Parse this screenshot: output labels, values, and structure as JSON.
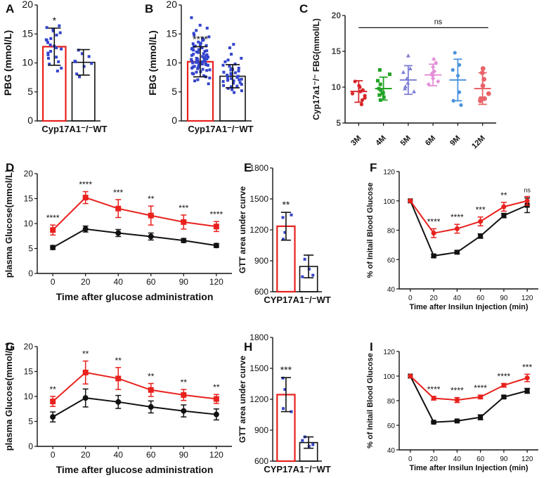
{
  "colors": {
    "red": "#e8211d",
    "black": "#111111",
    "blue": "#3344cc",
    "gray": "#444444"
  },
  "chart_data": [
    {
      "id": "A",
      "panel_label": "A",
      "type": "bar",
      "categories": [
        "Cyp17A1⁻/⁻",
        "WT"
      ],
      "category_caption": "Cyp17A1⁻/⁻WT",
      "values": [
        12.8,
        10.1
      ],
      "errors": [
        3.2,
        2.2
      ],
      "bar_colors": [
        "#e8211d",
        "#111111"
      ],
      "ylabel": "PBG (mmol/L)",
      "ylim": [
        0,
        20
      ],
      "yticks": [
        0,
        5,
        10,
        15,
        20
      ],
      "annotations": [
        {
          "text": "*",
          "category": 0
        }
      ],
      "points": [
        [
          13.1,
          15.8,
          14.2,
          12.4,
          11.0,
          9.1,
          8.6,
          13.5,
          15.2,
          16.1,
          12.0,
          10.2,
          14.8,
          11.7,
          13.9,
          9.8,
          12.9,
          15.5,
          10.8,
          14.0,
          11.4,
          12.6,
          16.4
        ],
        [
          12.2,
          11.1,
          9.4,
          10.2,
          8.1,
          7.6,
          9.9,
          11.6,
          10.3
        ]
      ]
    },
    {
      "id": "B",
      "panel_label": "B",
      "type": "bar",
      "categories": [
        "Cyp17A1⁻/⁻",
        "WT"
      ],
      "category_caption": "Cyp17A1⁻/⁻WT",
      "values": [
        10.2,
        7.7
      ],
      "errors": [
        2.6,
        2.0
      ],
      "bar_colors": [
        "#e8211d",
        "#111111"
      ],
      "ylabel": "FBG (mmol/L)",
      "ylim": [
        0,
        20
      ],
      "yticks": [
        0,
        5,
        10,
        15,
        20
      ],
      "annotations": [
        {
          "text": "****",
          "category": 0
        }
      ],
      "points": [
        [
          10.1,
          12.3,
          8.4,
          9.6,
          14.2,
          11.0,
          7.8,
          13.3,
          10.7,
          9.1,
          15.6,
          12.0,
          8.9,
          11.5,
          10.3,
          6.9,
          16.5,
          9.9,
          12.8,
          10.6,
          8.1,
          13.9,
          11.2,
          9.4,
          14.8,
          10.0,
          7.4,
          12.5,
          9.7,
          11.8,
          10.4,
          8.7,
          13.1,
          15.1,
          9.2,
          10.9,
          6.4,
          12.2,
          11.6,
          9.0,
          10.5,
          14.0,
          8.2,
          11.3,
          12.9,
          9.5,
          10.8,
          7.1,
          13.6,
          10.2,
          11.9,
          8.5,
          9.8,
          12.6,
          16.0,
          10.6,
          9.3,
          11.1,
          13.4,
          8.8,
          10.1,
          12.4,
          9.6,
          14.5,
          11.4,
          7.6,
          10.7,
          12.1,
          9.9,
          13.0,
          17.8,
          10.3
        ],
        [
          7.9,
          9.1,
          6.5,
          8.4,
          10.2,
          5.6,
          7.2,
          11.5,
          6.8,
          8.9,
          4.9,
          7.5,
          9.8,
          6.1,
          8.0,
          12.6,
          7.0,
          5.4,
          9.4,
          6.6,
          8.6,
          7.3,
          10.8,
          5.9,
          7.7,
          9.0,
          6.3,
          8.2,
          13.2,
          6.9,
          7.4,
          8.8,
          5.2,
          9.6,
          7.1,
          8.3,
          6.0,
          10.5
        ]
      ]
    },
    {
      "id": "C",
      "panel_label": "C",
      "type": "scatter",
      "categories": [
        "3M",
        "4M",
        "5M",
        "6M",
        "9M",
        "12M"
      ],
      "means": [
        9.4,
        9.8,
        11.0,
        11.7,
        11.0,
        9.8
      ],
      "sds": [
        1.5,
        1.6,
        2.0,
        1.5,
        2.9,
        2.2
      ],
      "series_colors": [
        "#d8262a",
        "#22a325",
        "#7d7fd4",
        "#e58ed8",
        "#4a93de",
        "#e8646a"
      ],
      "markers": [
        "circle",
        "square",
        "triangle",
        "diamond",
        "circle",
        "circle"
      ],
      "points": [
        [
          8.2,
          9.1,
          10.8,
          7.6,
          9.6,
          8.8,
          10.2,
          9.4,
          8.5,
          10.0
        ],
        [
          9.2,
          10.4,
          8.6,
          11.8,
          12.4,
          9.6,
          8.2,
          10.9,
          9.1,
          8.9,
          9.8
        ],
        [
          10.1,
          12.6,
          9.4,
          14.4,
          11.2,
          10.6,
          9.8,
          12.1
        ],
        [
          11.2,
          12.8,
          10.8,
          13.4,
          12.2,
          11.6,
          13.9,
          10.4,
          11.9
        ],
        [
          9.3,
          12.4,
          14.8,
          8.1,
          11.6,
          7.5,
          13.1
        ],
        [
          9.1,
          8.4,
          12.6,
          11.1,
          8.1,
          10.2,
          8.4,
          12.0
        ]
      ],
      "ylabel": "Cyp17a1⁻/⁻ FBG(mmol/L)",
      "ylim": [
        5,
        20
      ],
      "yticks": [
        5,
        10,
        15,
        20
      ],
      "bracket_text": "ns"
    },
    {
      "id": "D",
      "panel_label": "D",
      "type": "line",
      "x": [
        0,
        20,
        40,
        60,
        90,
        120
      ],
      "series": [
        {
          "name": "Cyp17A1⁻/⁻",
          "values": [
            8.7,
            15.2,
            13.0,
            11.6,
            10.3,
            9.4
          ],
          "errors": [
            1.0,
            1.2,
            1.8,
            1.9,
            1.4,
            1.0
          ],
          "color": "#e8211d",
          "marker": "square"
        },
        {
          "name": "WT",
          "values": [
            5.2,
            8.9,
            8.1,
            7.4,
            6.6,
            5.6
          ],
          "errors": [
            0.4,
            0.6,
            0.7,
            0.7,
            0.4,
            0.4
          ],
          "color": "#111111",
          "marker": "circle"
        }
      ],
      "annotations": [
        "****",
        "****",
        "***",
        "**",
        "***",
        "****"
      ],
      "xlabel": "Time after glucose administration",
      "ylabel": "plasma Glucose(mmol/L)",
      "ylim": [
        0,
        20
      ],
      "yticks": [
        0,
        5,
        10,
        15,
        20
      ],
      "xticks": [
        "0",
        "20",
        "40",
        "60",
        "90",
        "120"
      ]
    },
    {
      "id": "E",
      "panel_label": "E",
      "type": "bar",
      "categories": [
        "CYP17A1⁻/⁻",
        "WT"
      ],
      "category_caption": "CYP17A1⁻/⁻WT",
      "values": [
        1235,
        845
      ],
      "errors": [
        135,
        110
      ],
      "bar_colors": [
        "#e8211d",
        "#111111"
      ],
      "ylabel": "GTT area under curve",
      "ylim": [
        600,
        1800
      ],
      "yticks": [
        600,
        900,
        1200,
        1500,
        1800
      ],
      "annotations": [
        {
          "text": "**",
          "category": 0
        }
      ],
      "points": [
        [
          1320,
          1175,
          1110,
          1345
        ],
        [
          915,
          760,
          820,
          745
        ]
      ]
    },
    {
      "id": "F",
      "panel_label": "F",
      "type": "line",
      "x": [
        0,
        20,
        40,
        60,
        90,
        120
      ],
      "series": [
        {
          "name": "Cyp17A1⁻/⁻",
          "values": [
            100,
            78,
            81,
            86,
            96,
            100
          ],
          "errors": [
            0,
            3,
            3,
            3,
            3,
            3
          ],
          "color": "#e8211d",
          "marker": "circle"
        },
        {
          "name": "WT",
          "values": [
            100,
            62.5,
            65,
            76,
            90,
            97
          ],
          "errors": [
            0,
            1,
            1,
            1.5,
            1.5,
            5
          ],
          "color": "#111111",
          "marker": "square"
        }
      ],
      "annotations": [
        "",
        "****",
        "****",
        "***",
        "**",
        "ns"
      ],
      "xlabel": "Time after Insilun Injection (min)",
      "ylabel": "% of Initail Blood Glucose",
      "ylim": [
        40,
        120
      ],
      "yticks": [
        40,
        60,
        80,
        100,
        120
      ],
      "xticks": [
        "0",
        "20",
        "40",
        "60",
        "90",
        "120"
      ]
    },
    {
      "id": "G",
      "panel_label": "G",
      "type": "line",
      "x": [
        0,
        20,
        40,
        60,
        90,
        120
      ],
      "series": [
        {
          "name": "Cyp17A1⁻/⁻",
          "values": [
            9.0,
            14.8,
            13.6,
            11.3,
            10.3,
            9.5
          ],
          "errors": [
            1.0,
            2.3,
            2.2,
            1.3,
            1.1,
            0.9
          ],
          "color": "#e8211d",
          "marker": "square"
        },
        {
          "name": "WT",
          "values": [
            5.9,
            9.7,
            8.9,
            7.9,
            7.1,
            6.4
          ],
          "errors": [
            1.0,
            1.8,
            1.3,
            1.2,
            1.2,
            1.1
          ],
          "color": "#111111",
          "marker": "circle"
        }
      ],
      "annotations": [
        "**",
        "**",
        "**",
        "**",
        "**",
        "**"
      ],
      "xlabel": "Time after glucose administration",
      "ylabel": "plasma Glucose(mmol/L)",
      "ylim": [
        0,
        20
      ],
      "yticks": [
        0,
        5,
        10,
        15,
        20
      ],
      "xticks": [
        "0",
        "20",
        "40",
        "60",
        "90",
        "120"
      ]
    },
    {
      "id": "H",
      "panel_label": "H",
      "type": "bar",
      "categories": [
        "CYP17A1⁻/⁻",
        "WT"
      ],
      "category_caption": "CYP17A1⁻/⁻WT",
      "values": [
        1245,
        780
      ],
      "errors": [
        165,
        55
      ],
      "bar_colors": [
        "#e8211d",
        "#111111"
      ],
      "ylabel": "GTT area under curve",
      "ylim": [
        600,
        1800
      ],
      "yticks": [
        600,
        900,
        1200,
        1500,
        1800
      ],
      "annotations": [
        {
          "text": "***",
          "category": 0
        }
      ],
      "points": [
        [
          1405,
          1295,
          1110,
          1080
        ],
        [
          835,
          760,
          745,
          800
        ]
      ]
    },
    {
      "id": "I",
      "panel_label": "I",
      "type": "line",
      "x": [
        0,
        20,
        40,
        60,
        90,
        120
      ],
      "series": [
        {
          "name": "Cyp17A1⁻/⁻",
          "values": [
            100,
            82,
            80.5,
            83,
            92.5,
            98.5
          ],
          "errors": [
            0,
            1.5,
            2,
            1.5,
            1.5,
            3
          ],
          "color": "#e8211d",
          "marker": "circle"
        },
        {
          "name": "WT",
          "values": [
            100,
            62.5,
            63.5,
            66.5,
            83,
            88
          ],
          "errors": [
            0,
            0.6,
            0.8,
            2,
            1,
            2
          ],
          "color": "#111111",
          "marker": "square"
        }
      ],
      "annotations": [
        "",
        "****",
        "****",
        "****",
        "****",
        "***"
      ],
      "xlabel": "Time after Insilun Injection (min)",
      "ylabel": "% of Initail Blood Glucose",
      "ylim": [
        40,
        120
      ],
      "yticks": [
        40,
        60,
        80,
        100,
        120
      ],
      "xticks": [
        "0",
        "20",
        "40",
        "60",
        "90",
        "120"
      ]
    }
  ]
}
